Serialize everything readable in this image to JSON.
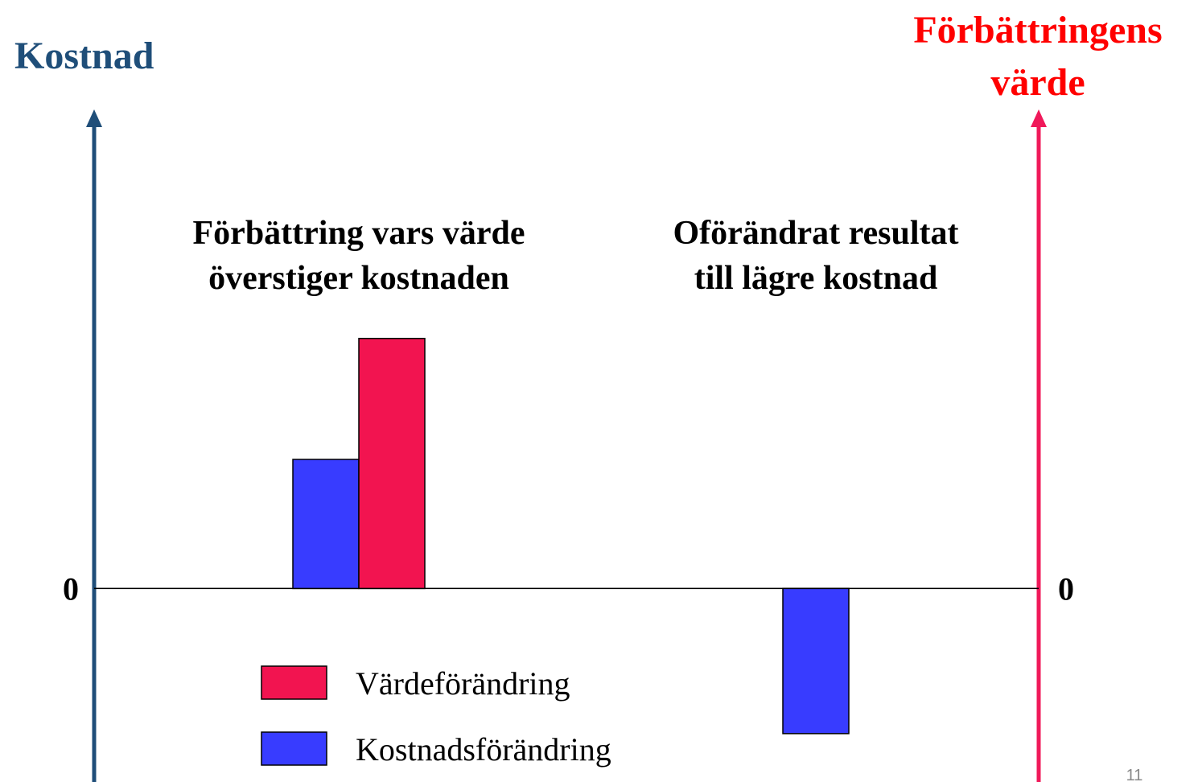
{
  "chart_data": {
    "type": "bar",
    "ylabel": "Kostnad",
    "y2label": [
      "Förbättringens",
      "värde"
    ],
    "categories": [
      [
        "Förbättring vars värde",
        "överstiger kostnaden"
      ],
      [
        "Oförändrat resultat",
        "till lägre kostnad"
      ]
    ],
    "series": [
      {
        "name": "Kostnadsförändring",
        "color": "#383cff",
        "values": [
          1.6,
          -1.8
        ]
      },
      {
        "name": "Värdeförändring",
        "color": "#f21450",
        "values": [
          3.1,
          null
        ],
        "axis": "y2"
      }
    ],
    "ylim": [
      -2.4,
      5.9
    ],
    "yticks": [
      0
    ],
    "y2lim": [
      -2.4,
      5.9
    ],
    "y2ticks": [
      0
    ],
    "left_axis_color": "#1f4e79",
    "right_axis_color": "#f0195a",
    "slide_number": "11"
  }
}
